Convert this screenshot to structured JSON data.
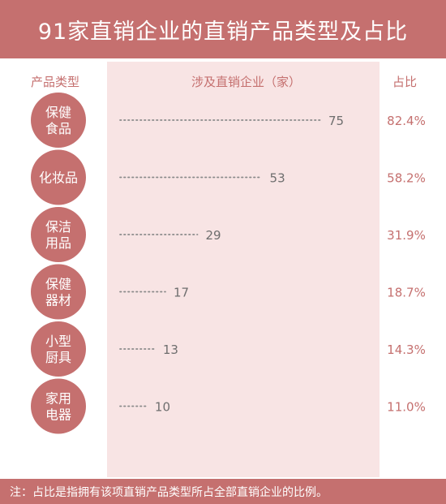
{
  "title": "91家直销企业的直销产品类型及占比",
  "headers": {
    "category": "产品类型",
    "count": "涉及直销企业（家）",
    "share": "占比"
  },
  "footer": "注：占比是指拥有该项直销产品类型所占全部直销企业的比例。",
  "colors": {
    "accent": "#c5706f",
    "band": "#f8e4e4",
    "dots": "#8a8a8a",
    "value_text": "#6e6e6e"
  },
  "chart_data": {
    "type": "bar",
    "title": "91家直销企业的直销产品类型及占比",
    "xlabel": "涉及直销企业（家）",
    "ylabel": "产品类型",
    "categories": [
      [
        "保健",
        "食品"
      ],
      [
        "化妆品"
      ],
      [
        "保洁",
        "用品"
      ],
      [
        "保健",
        "器材"
      ],
      [
        "小型",
        "厨具"
      ],
      [
        "家用",
        "电器"
      ]
    ],
    "values": [
      75,
      53,
      29,
      17,
      13,
      10
    ],
    "share": [
      "82.4%",
      "58.2%",
      "31.9%",
      "18.7%",
      "14.3%",
      "11.0%"
    ],
    "xlim": [
      0,
      75
    ]
  }
}
